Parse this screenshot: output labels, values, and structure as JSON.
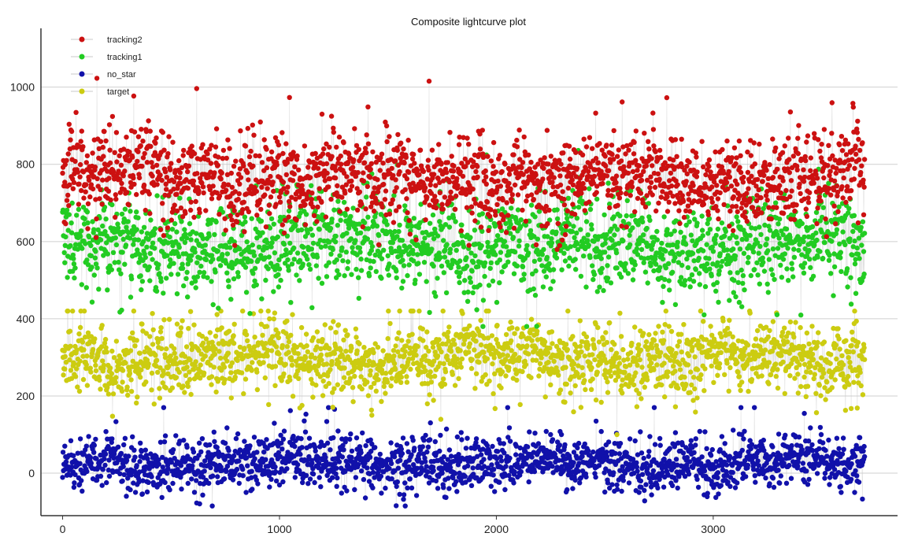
{
  "chart_data": {
    "type": "scatter",
    "title": "Composite lightcurve plot",
    "xlabel": "",
    "ylabel": "",
    "xlim": [
      -100,
      3850
    ],
    "ylim": [
      -110,
      1140
    ],
    "x_ticks": [
      0,
      1000,
      2000,
      3000
    ],
    "y_ticks": [
      0,
      200,
      400,
      600,
      800,
      1000
    ],
    "grid": "horizontal",
    "legend_position": "top-left",
    "connected_by_line": true,
    "line_color": "#c8c8c8",
    "n_points_per_series": 3700,
    "series": [
      {
        "name": "tracking2",
        "color": "#cc1111",
        "mean": 765,
        "spread": 65,
        "min": 560,
        "max": 1080
      },
      {
        "name": "tracking1",
        "color": "#22cc22",
        "mean": 590,
        "spread": 70,
        "min": 380,
        "max": 930
      },
      {
        "name": "no_star",
        "color": "#1111aa",
        "mean": 25,
        "spread": 40,
        "min": -85,
        "max": 170
      },
      {
        "name": "target",
        "color": "#cccc11",
        "mean": 295,
        "spread": 55,
        "min": 60,
        "max": 420
      }
    ]
  }
}
